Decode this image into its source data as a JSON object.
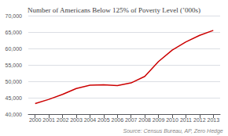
{
  "chart_data": {
    "type": "line",
    "title": "Number of Americans Below 125% of Poverty Level (’000s)",
    "categories": [
      "2000",
      "2001",
      "2002",
      "2003",
      "2004",
      "2005",
      "2006",
      "2007",
      "2008",
      "2009",
      "2010",
      "2011",
      "2012",
      "2013"
    ],
    "values": [
      43200,
      44500,
      46000,
      47800,
      48800,
      48900,
      48700,
      49500,
      51500,
      56000,
      59500,
      62000,
      64000,
      65500
    ],
    "color": "#cc0000",
    "ylim": [
      40000,
      70000
    ],
    "yticks": [
      {
        "value": 40000,
        "label": "40,000"
      },
      {
        "value": 45000,
        "label": "45,000"
      },
      {
        "value": 50000,
        "label": "50,000"
      },
      {
        "value": 55000,
        "label": "55,000"
      },
      {
        "value": 60000,
        "label": "60,000"
      },
      {
        "value": 65000,
        "label": "65,000"
      },
      {
        "value": 70000,
        "label": "70,000"
      }
    ],
    "grid": true,
    "annotation": "Source: Census Bureau, AP, Zero Hedge"
  }
}
